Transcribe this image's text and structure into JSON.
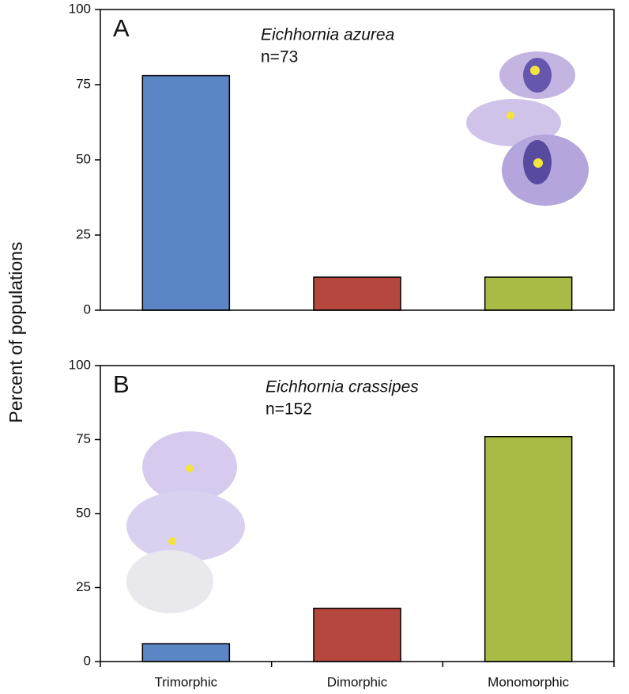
{
  "y_label": "Percent of populations",
  "chart_data": [
    {
      "type": "bar",
      "panel_label": "A",
      "title": "Eichhornia azurea",
      "subtitle": "n=73",
      "categories": [
        null,
        null,
        null
      ],
      "values": [
        78,
        11,
        11
      ],
      "colors": [
        "#5b86c5",
        "#b5473f",
        "#a9bb45"
      ],
      "ylim": [
        0,
        100
      ],
      "yticks": [
        0,
        25,
        50,
        75,
        100
      ]
    },
    {
      "type": "bar",
      "panel_label": "B",
      "title": "Eichhornia crassipes",
      "subtitle": "n=152",
      "categories": [
        "Trimorphic",
        "Dimorphic",
        "Monomorphic"
      ],
      "values": [
        6,
        18,
        76
      ],
      "colors": [
        "#5b86c5",
        "#b5473f",
        "#a9bb45"
      ],
      "ylim": [
        0,
        100
      ],
      "yticks": [
        0,
        25,
        50,
        75,
        100
      ]
    }
  ]
}
